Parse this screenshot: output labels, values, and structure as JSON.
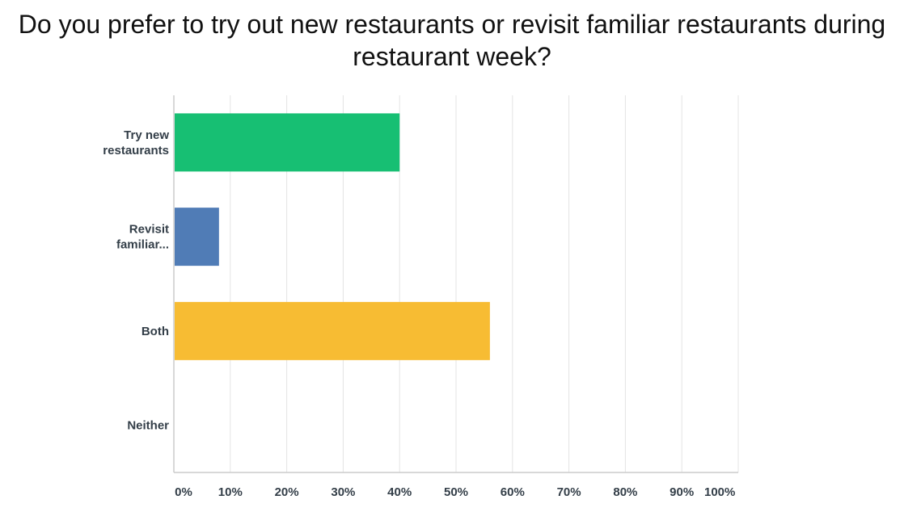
{
  "chart_data": {
    "type": "bar",
    "orientation": "horizontal",
    "title": "Do you prefer to try out new restaurants or revisit familiar restaurants during restaurant week?",
    "xlabel": "",
    "ylabel": "",
    "xlim": [
      0,
      100
    ],
    "x_ticks": [
      "0%",
      "10%",
      "20%",
      "30%",
      "40%",
      "50%",
      "60%",
      "70%",
      "80%",
      "90%",
      "100%"
    ],
    "categories": [
      [
        "Try new",
        "restaurants"
      ],
      [
        "Revisit",
        "familiar..."
      ],
      [
        "Both"
      ],
      [
        "Neither"
      ]
    ],
    "values": [
      40,
      8,
      56,
      0
    ],
    "colors": [
      "#17bf73",
      "#507cb6",
      "#f7bc33",
      "#17bf73"
    ],
    "grid": true,
    "legend": "none"
  },
  "colors": {
    "grid": "#e4e4e4",
    "axis": "#cccccc",
    "text": "#333e48"
  }
}
